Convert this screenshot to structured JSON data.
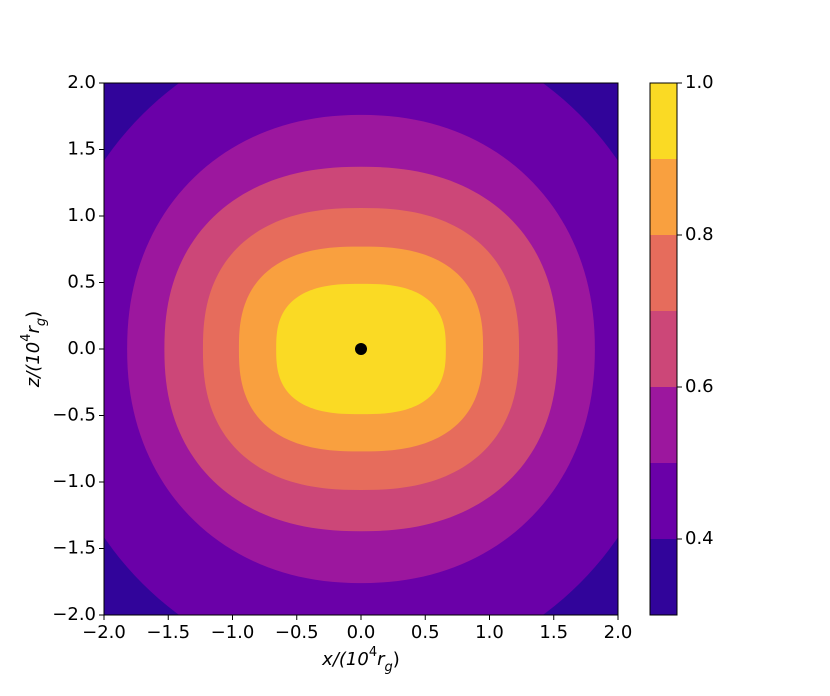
{
  "chart_data": {
    "type": "contourf",
    "xlabel": [
      "x/(10",
      "4",
      "r",
      "g",
      ")"
    ],
    "ylabel": [
      "z/(10",
      "4",
      "r",
      "g",
      ")"
    ],
    "xlim": [
      -2,
      2
    ],
    "ylim": [
      -2,
      2
    ],
    "xticks": [
      {
        "value": -2,
        "label": "−2.0"
      },
      {
        "value": -1.5,
        "label": "−1.5"
      },
      {
        "value": -1,
        "label": "−1.0"
      },
      {
        "value": -0.5,
        "label": "−0.5"
      },
      {
        "value": 0,
        "label": "0.0"
      },
      {
        "value": 0.5,
        "label": "0.5"
      },
      {
        "value": 1,
        "label": "1.0"
      },
      {
        "value": 1.5,
        "label": "1.5"
      },
      {
        "value": 2,
        "label": "2.0"
      }
    ],
    "yticks": [
      {
        "value": -2,
        "label": "−2.0"
      },
      {
        "value": -1.5,
        "label": "−1.5"
      },
      {
        "value": -1,
        "label": "−1.0"
      },
      {
        "value": -0.5,
        "label": "−0.5"
      },
      {
        "value": 0,
        "label": "0.0"
      },
      {
        "value": 0.5,
        "label": "0.5"
      },
      {
        "value": 1,
        "label": "1.0"
      },
      {
        "value": 1.5,
        "label": "1.5"
      },
      {
        "value": 2,
        "label": "2.0"
      }
    ],
    "levels": [
      0.3,
      0.4,
      0.5,
      0.6,
      0.7,
      0.8,
      0.9,
      1.0
    ],
    "colors": [
      "#31049a",
      "#6a00a8",
      "#9c179e",
      "#cc4778",
      "#e66c5c",
      "#f9a03f",
      "#fada24"
    ],
    "contours": [
      {
        "level": 0.4,
        "x_half": 2.45,
        "z_half": 2.45
      },
      {
        "level": 0.5,
        "x_half": 1.82,
        "z_half": 1.76
      },
      {
        "level": 0.6,
        "x_half": 1.53,
        "z_half": 1.37
      },
      {
        "level": 0.7,
        "x_half": 1.23,
        "z_half": 1.06
      },
      {
        "level": 0.8,
        "x_half": 0.95,
        "z_half": 0.77
      },
      {
        "level": 0.9,
        "x_half": 0.66,
        "z_half": 0.49
      }
    ],
    "clim": [
      0.3,
      1.0
    ],
    "cticks": [
      0.4,
      0.6,
      0.8,
      {
        "value": 1,
        "label": "1.0"
      }
    ],
    "points": {
      "x": [
        0
      ],
      "y": [
        0
      ],
      "color": "#000000"
    }
  }
}
